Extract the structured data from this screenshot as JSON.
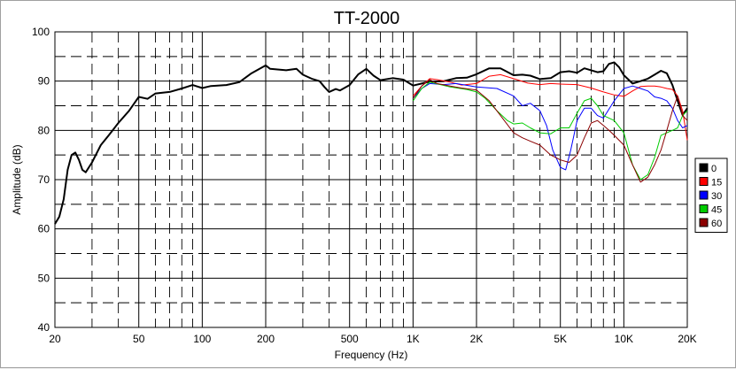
{
  "chart_data": {
    "type": "line",
    "title": "TT-2000",
    "xlabel": "Frequency (Hz)",
    "ylabel": "Amplitude (dB)",
    "xscale": "log",
    "xlim": [
      20,
      20000
    ],
    "ylim": [
      40,
      100
    ],
    "grid": true,
    "legend_position": "right",
    "yticks": [
      40,
      50,
      60,
      70,
      80,
      90,
      100
    ],
    "xticks": [
      {
        "value": 20,
        "label": "20"
      },
      {
        "value": 50,
        "label": "50"
      },
      {
        "value": 100,
        "label": "100"
      },
      {
        "value": 200,
        "label": "200"
      },
      {
        "value": 500,
        "label": "500"
      },
      {
        "value": 1000,
        "label": "1K"
      },
      {
        "value": 2000,
        "label": "2K"
      },
      {
        "value": 5000,
        "label": "5K"
      },
      {
        "value": 10000,
        "label": "10K"
      },
      {
        "value": 20000,
        "label": "20K"
      }
    ],
    "series": [
      {
        "name": "0",
        "color": "#000000",
        "points": [
          [
            20,
            61
          ],
          [
            21,
            62.5
          ],
          [
            22,
            66
          ],
          [
            23,
            72
          ],
          [
            24,
            75
          ],
          [
            25,
            75.5
          ],
          [
            26,
            74
          ],
          [
            27,
            72
          ],
          [
            28,
            71.5
          ],
          [
            30,
            73.5
          ],
          [
            33,
            77
          ],
          [
            36,
            79
          ],
          [
            40,
            81.5
          ],
          [
            45,
            84
          ],
          [
            50,
            86.8
          ],
          [
            55,
            86.4
          ],
          [
            60,
            87.5
          ],
          [
            70,
            87.8
          ],
          [
            80,
            88.5
          ],
          [
            90,
            89.2
          ],
          [
            100,
            88.6
          ],
          [
            110,
            89
          ],
          [
            130,
            89.2
          ],
          [
            150,
            89.8
          ],
          [
            170,
            91.5
          ],
          [
            200,
            93.2
          ],
          [
            210,
            92.5
          ],
          [
            250,
            92.2
          ],
          [
            280,
            92.5
          ],
          [
            300,
            91.3
          ],
          [
            330,
            90.5
          ],
          [
            360,
            90
          ],
          [
            380,
            88.8
          ],
          [
            400,
            87.8
          ],
          [
            430,
            88.4
          ],
          [
            450,
            88.1
          ],
          [
            500,
            89.2
          ],
          [
            550,
            91.4
          ],
          [
            600,
            92.5
          ],
          [
            650,
            91.1
          ],
          [
            700,
            90.2
          ],
          [
            800,
            90.6
          ],
          [
            900,
            90.3
          ],
          [
            1000,
            89.1
          ],
          [
            1100,
            89.5
          ],
          [
            1200,
            89.9
          ],
          [
            1400,
            90
          ],
          [
            1600,
            90.6
          ],
          [
            1800,
            90.7
          ],
          [
            2000,
            91.4
          ],
          [
            2300,
            92.6
          ],
          [
            2600,
            92.6
          ],
          [
            3000,
            91.2
          ],
          [
            3300,
            91.3
          ],
          [
            3600,
            91.1
          ],
          [
            4000,
            90.4
          ],
          [
            4500,
            90.6
          ],
          [
            5000,
            91.8
          ],
          [
            5500,
            92
          ],
          [
            6000,
            91.7
          ],
          [
            6500,
            92.6
          ],
          [
            7000,
            92.2
          ],
          [
            7500,
            91.8
          ],
          [
            8000,
            92
          ],
          [
            8500,
            93.5
          ],
          [
            9000,
            93.8
          ],
          [
            9500,
            92.8
          ],
          [
            10000,
            91.2
          ],
          [
            11000,
            89.5
          ],
          [
            12000,
            90
          ],
          [
            13000,
            90.5
          ],
          [
            14000,
            91.3
          ],
          [
            15000,
            92.1
          ],
          [
            16000,
            91.6
          ],
          [
            17000,
            89.2
          ],
          [
            18000,
            86
          ],
          [
            19000,
            83.1
          ],
          [
            20000,
            84.5
          ]
        ]
      },
      {
        "name": "15",
        "color": "#ff0000",
        "points": [
          [
            1000,
            87
          ],
          [
            1100,
            89
          ],
          [
            1200,
            90.5
          ],
          [
            1300,
            90.3
          ],
          [
            1500,
            89.8
          ],
          [
            1700,
            89.2
          ],
          [
            2000,
            89.5
          ],
          [
            2300,
            91
          ],
          [
            2600,
            91.3
          ],
          [
            3000,
            90.5
          ],
          [
            3500,
            89.6
          ],
          [
            4000,
            89.3
          ],
          [
            4500,
            89.5
          ],
          [
            5000,
            89.4
          ],
          [
            6000,
            89.3
          ],
          [
            7000,
            88.6
          ],
          [
            8000,
            87.8
          ],
          [
            9000,
            87.2
          ],
          [
            10000,
            86.9
          ],
          [
            11000,
            88
          ],
          [
            12000,
            88.9
          ],
          [
            13000,
            89
          ],
          [
            14000,
            89
          ],
          [
            15000,
            88.8
          ],
          [
            16000,
            88.5
          ],
          [
            17000,
            88.3
          ],
          [
            18000,
            87
          ],
          [
            19000,
            84
          ],
          [
            20000,
            78
          ]
        ]
      },
      {
        "name": "30",
        "color": "#0000ff",
        "points": [
          [
            1000,
            86.5
          ],
          [
            1100,
            88.5
          ],
          [
            1200,
            89.5
          ],
          [
            1400,
            89.3
          ],
          [
            1600,
            89.5
          ],
          [
            2000,
            88.8
          ],
          [
            2500,
            88.5
          ],
          [
            3000,
            87
          ],
          [
            3300,
            85
          ],
          [
            3600,
            85.5
          ],
          [
            4000,
            84
          ],
          [
            4300,
            81
          ],
          [
            4600,
            76
          ],
          [
            5000,
            72.5
          ],
          [
            5300,
            72
          ],
          [
            5600,
            76
          ],
          [
            6000,
            82
          ],
          [
            6500,
            84.5
          ],
          [
            7000,
            84.5
          ],
          [
            7500,
            83
          ],
          [
            8000,
            82.5
          ],
          [
            9000,
            86
          ],
          [
            10000,
            88.5
          ],
          [
            11000,
            89
          ],
          [
            12000,
            88.5
          ],
          [
            13000,
            88
          ],
          [
            14000,
            86.8
          ],
          [
            15000,
            86.5
          ],
          [
            16000,
            86
          ],
          [
            17000,
            84.5
          ],
          [
            18000,
            82
          ],
          [
            19000,
            80.5
          ],
          [
            20000,
            81
          ]
        ]
      },
      {
        "name": "45",
        "color": "#00cc00",
        "points": [
          [
            1000,
            86
          ],
          [
            1100,
            88.5
          ],
          [
            1200,
            89.8
          ],
          [
            1500,
            88.8
          ],
          [
            1800,
            88.3
          ],
          [
            2000,
            87.8
          ],
          [
            2200,
            86.5
          ],
          [
            2500,
            84
          ],
          [
            2800,
            82
          ],
          [
            3000,
            81.3
          ],
          [
            3300,
            81.5
          ],
          [
            3600,
            80.5
          ],
          [
            4000,
            79.5
          ],
          [
            4500,
            79.3
          ],
          [
            5000,
            80.5
          ],
          [
            5500,
            80.5
          ],
          [
            6000,
            83.5
          ],
          [
            6500,
            86
          ],
          [
            7000,
            86.5
          ],
          [
            7500,
            85
          ],
          [
            8000,
            83
          ],
          [
            9000,
            82
          ],
          [
            10000,
            79.5
          ],
          [
            11000,
            73
          ],
          [
            12000,
            70
          ],
          [
            13000,
            71
          ],
          [
            14000,
            74.5
          ],
          [
            15000,
            79
          ],
          [
            16000,
            79.5
          ],
          [
            17000,
            80
          ],
          [
            18000,
            80.5
          ],
          [
            19000,
            83
          ],
          [
            20000,
            84
          ]
        ]
      },
      {
        "name": "60",
        "color": "#8b0000",
        "points": [
          [
            1000,
            86.5
          ],
          [
            1100,
            89
          ],
          [
            1200,
            90.3
          ],
          [
            1300,
            89.5
          ],
          [
            1500,
            89
          ],
          [
            1700,
            88.6
          ],
          [
            2000,
            88.2
          ],
          [
            2300,
            86
          ],
          [
            2600,
            83
          ],
          [
            3000,
            79.5
          ],
          [
            3300,
            78.5
          ],
          [
            3600,
            77.8
          ],
          [
            4000,
            77
          ],
          [
            4500,
            75
          ],
          [
            5000,
            74
          ],
          [
            5500,
            73.5
          ],
          [
            6000,
            75
          ],
          [
            6500,
            78.5
          ],
          [
            7000,
            81.5
          ],
          [
            7500,
            82
          ],
          [
            8000,
            81
          ],
          [
            8500,
            80
          ],
          [
            9000,
            79
          ],
          [
            10000,
            77
          ],
          [
            11000,
            73
          ],
          [
            12000,
            69.5
          ],
          [
            13000,
            70.5
          ],
          [
            14000,
            73
          ],
          [
            15000,
            76
          ],
          [
            16000,
            80
          ],
          [
            17000,
            84
          ],
          [
            18000,
            87
          ],
          [
            19000,
            83
          ],
          [
            20000,
            82
          ]
        ]
      }
    ]
  }
}
